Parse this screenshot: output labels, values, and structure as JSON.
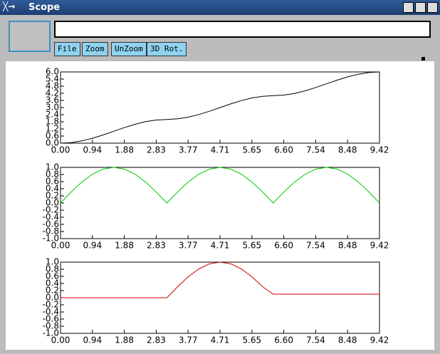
{
  "window": {
    "title": "Scope",
    "buttons": [
      "File",
      "Zoom",
      "UnZoom",
      "3D Rot."
    ]
  },
  "chart_data": [
    {
      "type": "line",
      "color": "#000000",
      "x": [
        0,
        0.314,
        0.628,
        0.942,
        1.257,
        1.571,
        1.885,
        2.199,
        2.513,
        2.827,
        3.142,
        3.456,
        3.77,
        4.084,
        4.398,
        4.712,
        5.027,
        5.341,
        5.655,
        5.969,
        6.283,
        6.597,
        6.912,
        7.226,
        7.54,
        7.854,
        8.168,
        8.482,
        8.796,
        9.111,
        9.42
      ],
      "values": [
        0,
        0.049,
        0.191,
        0.412,
        0.691,
        1,
        1.309,
        1.588,
        1.809,
        1.951,
        2,
        2.049,
        2.191,
        2.412,
        2.691,
        3,
        3.309,
        3.588,
        3.809,
        3.951,
        4,
        4.049,
        4.191,
        4.412,
        4.691,
        5,
        5.309,
        5.588,
        5.809,
        5.951,
        6
      ],
      "xlim": [
        0,
        9.42
      ],
      "ylim": [
        0,
        6
      ],
      "xticks": [
        {
          "value": 0,
          "label": "0.00"
        },
        {
          "value": 0.942,
          "label": "0.94"
        },
        {
          "value": 1.884,
          "label": "1.88"
        },
        {
          "value": 2.826,
          "label": "2.83"
        },
        {
          "value": 3.768,
          "label": "3.77"
        },
        {
          "value": 4.71,
          "label": "4.71"
        },
        {
          "value": 5.652,
          "label": "5.65"
        },
        {
          "value": 6.594,
          "label": "6.60"
        },
        {
          "value": 7.536,
          "label": "7.54"
        },
        {
          "value": 8.478,
          "label": "8.48"
        },
        {
          "value": 9.42,
          "label": "9.42"
        }
      ],
      "yticks": [
        {
          "value": 0,
          "label": "0.0"
        },
        0.6,
        1.2,
        1.8,
        2.4,
        {
          "value": 3,
          "label": "3.0"
        },
        3.6,
        4.2,
        4.8,
        5.4,
        {
          "value": 6,
          "label": "6.0"
        }
      ]
    },
    {
      "type": "line",
      "color": "#00cc00",
      "x": [
        0,
        0.314,
        0.628,
        0.942,
        1.257,
        1.571,
        1.885,
        2.199,
        2.513,
        2.827,
        3.142,
        3.456,
        3.77,
        4.084,
        4.398,
        4.712,
        5.027,
        5.341,
        5.655,
        5.969,
        6.283,
        6.597,
        6.912,
        7.226,
        7.54,
        7.854,
        8.168,
        8.482,
        8.796,
        9.111,
        9.42
      ],
      "values": [
        0,
        0.309,
        0.588,
        0.809,
        0.951,
        1,
        0.951,
        0.809,
        0.588,
        0.309,
        0,
        0.309,
        0.588,
        0.809,
        0.951,
        1,
        0.951,
        0.809,
        0.588,
        0.309,
        0,
        0.309,
        0.588,
        0.809,
        0.951,
        1,
        0.951,
        0.809,
        0.588,
        0.309,
        0
      ],
      "xlim": [
        0,
        9.42
      ],
      "ylim": [
        -1,
        1
      ],
      "xticks": [
        {
          "value": 0,
          "label": "0.00"
        },
        {
          "value": 0.942,
          "label": "0.94"
        },
        {
          "value": 1.884,
          "label": "1.88"
        },
        {
          "value": 2.826,
          "label": "2.83"
        },
        {
          "value": 3.768,
          "label": "3.77"
        },
        {
          "value": 4.71,
          "label": "4.71"
        },
        {
          "value": 5.652,
          "label": "5.65"
        },
        {
          "value": 6.594,
          "label": "6.60"
        },
        {
          "value": 7.536,
          "label": "7.54"
        },
        {
          "value": 8.478,
          "label": "8.48"
        },
        {
          "value": 9.42,
          "label": "9.42"
        }
      ],
      "yticks": [
        {
          "value": -1,
          "label": "-1.0"
        },
        -0.8,
        -0.6,
        -0.4,
        -0.2,
        {
          "value": 0,
          "label": "0.0"
        },
        0.2,
        0.4,
        0.6,
        0.8,
        {
          "value": 1,
          "label": "1.0"
        }
      ]
    },
    {
      "type": "line",
      "color": "#cc0000",
      "x": [
        0,
        0.314,
        0.628,
        0.942,
        1.257,
        1.571,
        1.885,
        2.199,
        2.513,
        2.827,
        3.142,
        3.456,
        3.77,
        4.084,
        4.398,
        4.712,
        5.027,
        5.341,
        5.655,
        5.969,
        6.283,
        6.597,
        6.912,
        7.226,
        7.54,
        7.854,
        8.168,
        8.482,
        8.796,
        9.111,
        9.42
      ],
      "values": [
        0,
        0,
        0,
        0,
        0,
        0,
        0,
        0,
        0,
        0,
        0,
        0.309,
        0.588,
        0.809,
        0.951,
        1,
        0.951,
        0.809,
        0.588,
        0.309,
        0.1,
        0.1,
        0.1,
        0.1,
        0.1,
        0.1,
        0.1,
        0.1,
        0.1,
        0.1,
        0.1
      ],
      "xlim": [
        0,
        9.42
      ],
      "ylim": [
        -1,
        1
      ],
      "xticks": [
        {
          "value": 0,
          "label": "0.00"
        },
        {
          "value": 0.942,
          "label": "0.94"
        },
        {
          "value": 1.884,
          "label": "1.88"
        },
        {
          "value": 2.826,
          "label": "2.83"
        },
        {
          "value": 3.768,
          "label": "3.77"
        },
        {
          "value": 4.71,
          "label": "4.71"
        },
        {
          "value": 5.652,
          "label": "5.65"
        },
        {
          "value": 6.594,
          "label": "6.60"
        },
        {
          "value": 7.536,
          "label": "7.54"
        },
        {
          "value": 8.478,
          "label": "8.48"
        },
        {
          "value": 9.42,
          "label": "9.42"
        }
      ],
      "yticks": [
        {
          "value": -1,
          "label": "-1.0"
        },
        -0.8,
        -0.6,
        -0.4,
        -0.2,
        {
          "value": 0,
          "label": "0.0"
        },
        0.2,
        0.4,
        0.6,
        0.8,
        {
          "value": 1,
          "label": "1.0"
        }
      ]
    }
  ]
}
